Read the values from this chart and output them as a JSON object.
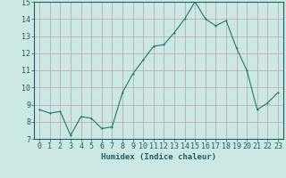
{
  "x": [
    0,
    1,
    2,
    3,
    4,
    5,
    6,
    7,
    8,
    9,
    10,
    11,
    12,
    13,
    14,
    15,
    16,
    17,
    18,
    19,
    20,
    21,
    22,
    23
  ],
  "y": [
    8.7,
    8.5,
    8.6,
    7.2,
    8.3,
    8.2,
    7.6,
    7.7,
    9.7,
    10.8,
    11.6,
    12.4,
    12.5,
    13.2,
    14.0,
    15.0,
    14.0,
    13.6,
    13.9,
    12.3,
    11.0,
    8.7,
    9.1,
    9.7
  ],
  "line_color": "#1a7a6e",
  "marker_color": "#1a7a6e",
  "bg_color": "#cce8e4",
  "grid_color": "#c0a0a8",
  "xlabel": "Humidex (Indice chaleur)",
  "ylim": [
    7,
    15
  ],
  "xlim_min": -0.5,
  "xlim_max": 23.5,
  "yticks": [
    7,
    8,
    9,
    10,
    11,
    12,
    13,
    14,
    15
  ],
  "xticks": [
    0,
    1,
    2,
    3,
    4,
    5,
    6,
    7,
    8,
    9,
    10,
    11,
    12,
    13,
    14,
    15,
    16,
    17,
    18,
    19,
    20,
    21,
    22,
    23
  ],
  "tick_color": "#1a6060",
  "xlabel_fontsize": 6.5,
  "tick_fontsize": 6.0,
  "linewidth": 0.8,
  "markersize": 2.0
}
